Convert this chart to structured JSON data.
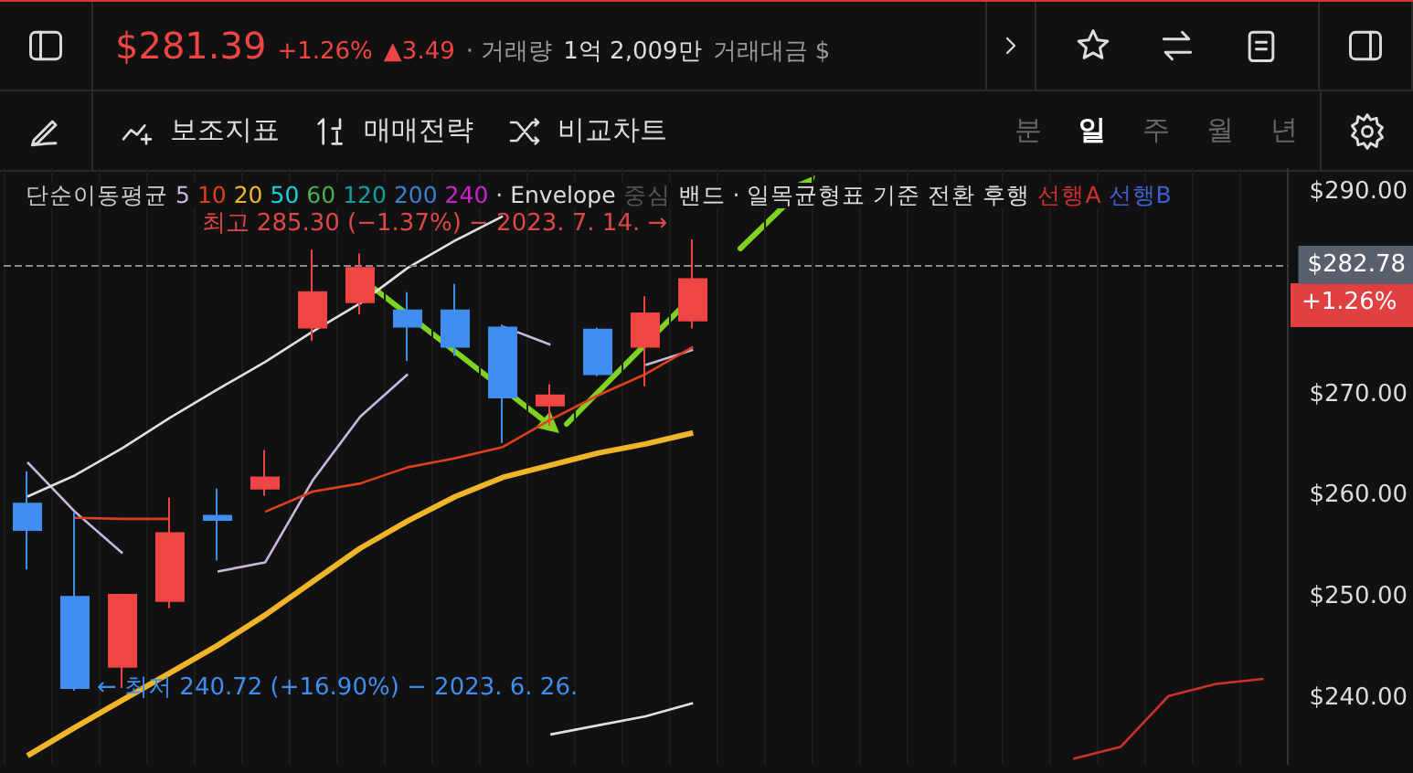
{
  "chart_data": {
    "type": "candlestick",
    "categories": [
      null,
      null,
      null,
      null,
      null,
      null,
      null,
      null,
      null,
      null,
      null,
      null,
      null,
      null,
      null,
      null,
      null,
      null,
      null,
      null,
      null,
      null,
      null,
      null,
      null,
      null,
      null
    ],
    "ohlc": [
      [
        259.2,
        262.4,
        252.7,
        256.6
      ],
      [
        250.0,
        258.4,
        240.72,
        241.0
      ],
      [
        243.1,
        250.3,
        241.0,
        250.2
      ],
      [
        249.6,
        259.8,
        248.9,
        256.3
      ],
      [
        258.0,
        260.7,
        253.6,
        257.6
      ],
      [
        260.7,
        264.5,
        260.0,
        261.8
      ],
      [
        276.6,
        284.3,
        275.3,
        280.1
      ],
      [
        279.1,
        283.9,
        277.9,
        282.5
      ],
      [
        278.3,
        280.1,
        273.3,
        276.7
      ],
      [
        278.3,
        280.9,
        273.8,
        274.7
      ],
      [
        276.6,
        276.9,
        265.2,
        269.7
      ],
      [
        268.9,
        271.0,
        266.9,
        269.9
      ],
      [
        276.4,
        276.6,
        271.8,
        272.0
      ],
      [
        274.7,
        279.7,
        270.8,
        278.0
      ],
      [
        277.3,
        285.3,
        276.5,
        281.39
      ],
      null,
      null,
      null,
      null,
      null,
      null,
      null,
      null,
      null,
      null,
      null,
      null
    ],
    "colors": [
      "#3f8ef0",
      "#3f8ef0",
      "#f04545",
      "#f04545",
      "#3f8ef0",
      "#f04545",
      "#f04545",
      "#f04545",
      "#3f8ef0",
      "#3f8ef0",
      "#3f8ef0",
      "#f04545",
      "#3f8ef0",
      "#f04545",
      "#f04545",
      null,
      null,
      null,
      null,
      null,
      null,
      null,
      null,
      null,
      null,
      null,
      null
    ],
    "legend_title": "단순이동평균",
    "series": [
      {
        "type": "line",
        "name": "5",
        "color": "#c8b8e0",
        "values": [
          263.3,
          258.4,
          254.3,
          null,
          252.5,
          253.4,
          261.5,
          267.8,
          272.0,
          null,
          276.7,
          274.9,
          null,
          272.9,
          274.4,
          null,
          null,
          null,
          null,
          null,
          null,
          null,
          null,
          null,
          null,
          null,
          null
        ]
      },
      {
        "type": "line",
        "name": "10",
        "color": "#e0401e",
        "values": [
          null,
          257.8,
          257.7,
          257.7,
          null,
          258.4,
          260.4,
          261.2,
          262.8,
          263.7,
          264.8,
          267.5,
          269.9,
          272.0,
          274.7,
          null,
          null,
          null,
          null,
          null,
          null,
          null,
          null,
          null,
          null,
          null,
          null
        ]
      },
      {
        "type": "line",
        "name": "20",
        "color": "#f0b429",
        "values": [
          234.3,
          237.1,
          239.8,
          242.5,
          245.2,
          248.2,
          251.5,
          254.8,
          257.5,
          259.9,
          261.8,
          263.0,
          264.2,
          265.1,
          266.2,
          null,
          null,
          null,
          null,
          null,
          null,
          null,
          null,
          null,
          null,
          null,
          null
        ]
      },
      {
        "type": "line",
        "name": "50",
        "color": "#19d3e0",
        "values": [
          null,
          null,
          null,
          null,
          null,
          null,
          null,
          null,
          null,
          null,
          null,
          null,
          null,
          null,
          null,
          null,
          null,
          null,
          null,
          null,
          null,
          null,
          null,
          null,
          null,
          null,
          null
        ]
      },
      {
        "type": "line",
        "name": "60",
        "color": "#4caf50",
        "values": [
          null,
          null,
          null,
          null,
          null,
          null,
          null,
          null,
          null,
          null,
          null,
          null,
          null,
          null,
          null,
          null,
          null,
          null,
          null,
          null,
          null,
          null,
          null,
          null,
          null,
          null,
          null
        ]
      },
      {
        "type": "line",
        "name": "120",
        "color": "#14a0a0",
        "values": [
          null,
          null,
          null,
          null,
          null,
          null,
          null,
          null,
          null,
          null,
          null,
          null,
          null,
          null,
          null,
          null,
          null,
          null,
          null,
          null,
          null,
          null,
          null,
          null,
          null,
          null,
          null
        ]
      },
      {
        "type": "line",
        "name": "200",
        "color": "#3d7fd0",
        "values": [
          null,
          null,
          null,
          null,
          null,
          null,
          null,
          null,
          null,
          null,
          null,
          null,
          null,
          null,
          null,
          null,
          null,
          null,
          null,
          null,
          null,
          null,
          null,
          null,
          null,
          null,
          null
        ]
      },
      {
        "type": "line",
        "name": "240",
        "color": "#d020d0",
        "values": [
          null,
          null,
          null,
          null,
          null,
          null,
          null,
          null,
          null,
          null,
          null,
          null,
          null,
          null,
          null,
          null,
          null,
          null,
          null,
          null,
          null,
          null,
          null,
          null,
          null,
          null,
          null
        ]
      },
      {
        "type": "line",
        "name": "중심",
        "color": "#555555",
        "values": [
          null,
          null,
          null,
          null,
          null,
          null,
          null,
          null,
          null,
          null,
          null,
          null,
          null,
          null,
          null,
          null,
          null,
          null,
          null,
          null,
          null,
          null,
          null,
          null,
          null,
          null,
          null
        ]
      },
      {
        "type": "line",
        "name": "밴드",
        "color": "#e0e0e0",
        "values": [
          259.9,
          262.0,
          264.7,
          267.7,
          270.5,
          273.2,
          276.2,
          279.0,
          282.5,
          285.2,
          287.6,
          null,
          null,
          null,
          null,
          null,
          null,
          null,
          null,
          null,
          null,
          null,
          null,
          null,
          null,
          null,
          null
        ]
      },
      {
        "type": "line",
        "color": "#e0e0e0",
        "values": [
          null,
          null,
          null,
          null,
          null,
          null,
          null,
          null,
          null,
          null,
          null,
          236.4,
          237.3,
          238.2,
          239.5,
          null,
          null,
          null,
          null,
          null,
          null,
          null,
          null,
          null,
          null,
          null,
          null
        ]
      },
      {
        "type": "line",
        "name": "기준",
        "color": "#dddddd",
        "values": [
          null,
          null,
          null,
          null,
          null,
          null,
          null,
          null,
          null,
          null,
          null,
          null,
          null,
          null,
          null,
          null,
          null,
          null,
          null,
          null,
          null,
          null,
          null,
          null,
          null,
          null,
          null
        ]
      },
      {
        "type": "line",
        "name": "전환",
        "color": "#dddddd",
        "values": [
          null,
          null,
          null,
          null,
          null,
          null,
          null,
          null,
          null,
          null,
          null,
          null,
          null,
          null,
          null,
          null,
          null,
          null,
          null,
          null,
          null,
          null,
          null,
          null,
          null,
          null,
          null
        ]
      },
      {
        "type": "line",
        "name": "후행",
        "color": "#dddddd",
        "values": [
          null,
          null,
          null,
          null,
          null,
          null,
          null,
          null,
          null,
          null,
          null,
          null,
          null,
          null,
          null,
          null,
          null,
          null,
          null,
          null,
          null,
          null,
          null,
          null,
          null,
          null,
          null
        ]
      },
      {
        "type": "line",
        "name": "선행A",
        "color": "#d03030",
        "values": [
          null,
          null,
          null,
          null,
          null,
          null,
          null,
          null,
          null,
          null,
          null,
          null,
          null,
          null,
          null,
          null,
          null,
          null,
          null,
          null,
          null,
          null,
          234.0,
          235.2,
          240.2,
          241.4,
          241.9
        ]
      },
      {
        "type": "line",
        "name": "선행B",
        "color": "#4060d0",
        "values": [
          null,
          null,
          null,
          null,
          null,
          null,
          null,
          null,
          null,
          null,
          null,
          null,
          null,
          null,
          null,
          null,
          null,
          null,
          null,
          null,
          null,
          null,
          null,
          null,
          null,
          null,
          null
        ]
      }
    ],
    "ylim": [
      233.5,
      292.35
    ],
    "yticks": [
      {
        "value": 240,
        "label": "$240.00"
      },
      {
        "value": 250,
        "label": "$250.00"
      },
      {
        "value": 260,
        "label": "$260.00"
      },
      {
        "value": 270,
        "label": "$270.00"
      },
      {
        "value": 290,
        "label": "$290.00"
      }
    ],
    "tick_labels": "y",
    "grid": "x",
    "legend": "top",
    "marker": "none",
    "line_style": "solid",
    "ref_lines": [
      {
        "axis": "y",
        "value": 282.78,
        "label": "$282.78",
        "color": "#888888",
        "line_style": "dashed"
      }
    ],
    "annotations": [
      "· Envelope",
      "· 일목균형표",
      "$281.39",
      "+1.26%",
      "▲3.49",
      "· 거래량",
      "1억 2,009만",
      "거래대금 $",
      "보조지표",
      "매매전략",
      "비교차트",
      "분",
      "일",
      "주",
      "월",
      "년",
      "+1.26%",
      "최고 285.30 (−1.37%) − 2023. 7. 14. →",
      "← 최저 240.72 (+16.90%) − 2023. 6. 26."
    ]
  }
}
